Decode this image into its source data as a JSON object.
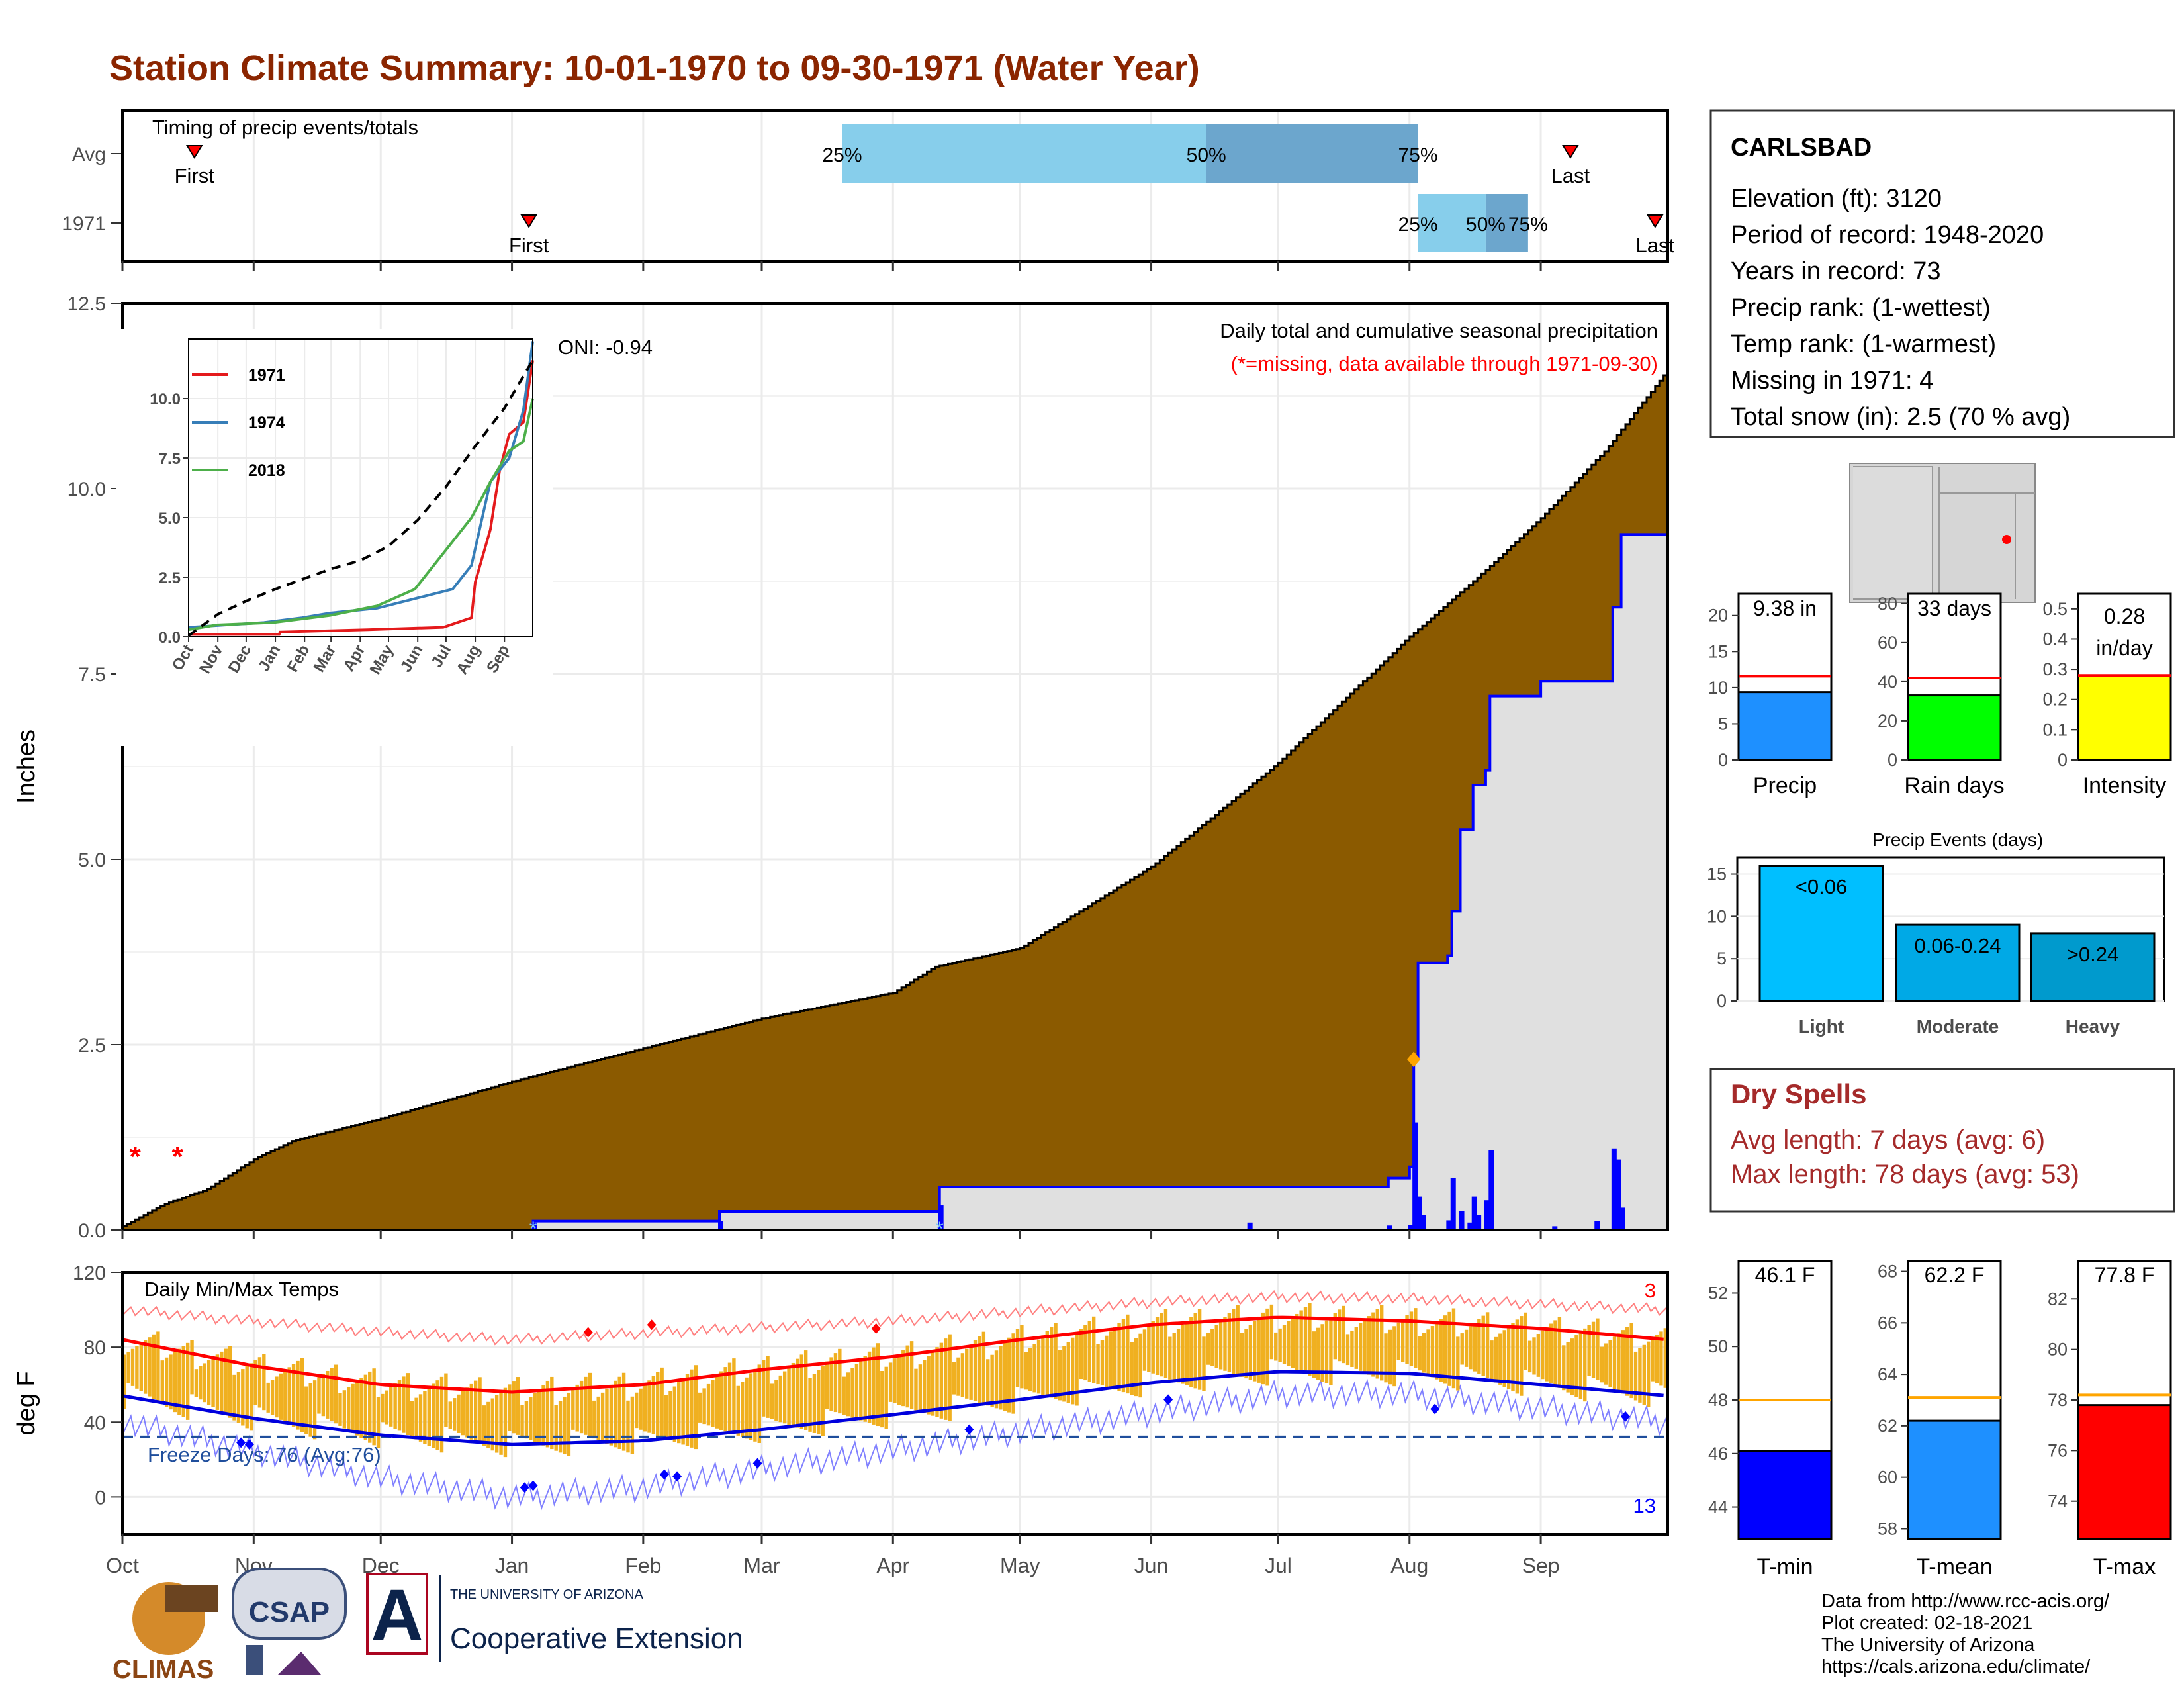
{
  "page": {
    "title": "Station Climate Summary: 10-01-1970 to 09-30-1971 (Water Year)",
    "credits": [
      "Data from http://www.rcc-acis.org/",
      "Plot created: 02-18-2021",
      "The University of Arizona",
      "https://cals.arizona.edu/climate/"
    ],
    "logos": {
      "climas": "CLIMAS",
      "csap": "CSAP",
      "ua_small": "THE UNIVERSITY OF ARIZONA",
      "ua_big": "Cooperative Extension"
    },
    "colors": {
      "title": "#8B2500",
      "precip_fill": "#8B5A00",
      "avg_fill": "#E0E0E0",
      "daily_bar": "#0000FF",
      "temp_bar": "#F0B020",
      "tmax_line": "#FF0000",
      "tmin_line": "#0000DD"
    }
  },
  "chart_data": [
    {
      "type": "bar",
      "title": "Timing of precip events/totals",
      "categories": [
        "Avg",
        "1971"
      ],
      "rows": [
        {
          "name": "Avg",
          "first_day": 17,
          "last_day": 342,
          "p25": 170,
          "p50": 256,
          "p75": 306
        },
        {
          "name": "1971",
          "first_day": 96,
          "last_day": 362,
          "p25": 306,
          "p50": 322,
          "p75": 332
        }
      ],
      "percent_labels": [
        "25%",
        "50%",
        "75%"
      ],
      "first_label": "First",
      "last_label": "Last",
      "last_label_1971": "Last",
      "colors": {
        "q1": "#87CEEB",
        "q2": "#6CA6CD",
        "marker": "#FF0000"
      }
    },
    {
      "type": "area",
      "title": "Daily total and cumulative seasonal precipitation",
      "subtitle": "(*=missing, data available through 1971-09-30)",
      "annotation": "ONI: -0.94",
      "ylabel": "Inches",
      "ylim": [
        0,
        12.5
      ],
      "yticks": [
        0.0,
        2.5,
        5.0,
        7.5,
        10.0,
        12.5
      ],
      "ytick_labels": [
        "0.0",
        "2.5",
        "5.0",
        "7.5",
        "10.0",
        "12.5"
      ],
      "x_labels": [
        "Oct",
        "Nov",
        "Dec",
        "Jan",
        "Feb",
        "Mar",
        "Apr",
        "May",
        "Jun",
        "Jul",
        "Aug",
        "Sep"
      ],
      "month_start_days": [
        0,
        31,
        61,
        92,
        123,
        151,
        182,
        212,
        243,
        273,
        304,
        335
      ],
      "avg_cumulative": [
        [
          0,
          0.05
        ],
        [
          5,
          0.2
        ],
        [
          10,
          0.35
        ],
        [
          20,
          0.55
        ],
        [
          31,
          0.95
        ],
        [
          40,
          1.2
        ],
        [
          61,
          1.5
        ],
        [
          92,
          2.0
        ],
        [
          123,
          2.45
        ],
        [
          151,
          2.85
        ],
        [
          182,
          3.2
        ],
        [
          192,
          3.55
        ],
        [
          212,
          3.8
        ],
        [
          243,
          4.9
        ],
        [
          273,
          6.3
        ],
        [
          304,
          8.0
        ],
        [
          320,
          8.8
        ],
        [
          335,
          9.6
        ],
        [
          350,
          10.5
        ],
        [
          365,
          11.6
        ]
      ],
      "cumulative_1971": [
        [
          0,
          0.0
        ],
        [
          96,
          0.0
        ],
        [
          97,
          0.12
        ],
        [
          140,
          0.12
        ],
        [
          141,
          0.25
        ],
        [
          192,
          0.25
        ],
        [
          193,
          0.58
        ],
        [
          298,
          0.58
        ],
        [
          299,
          0.7
        ],
        [
          304,
          0.85
        ],
        [
          305,
          2.3
        ],
        [
          306,
          3.6
        ],
        [
          313,
          3.7
        ],
        [
          314,
          4.3
        ],
        [
          316,
          5.4
        ],
        [
          319,
          6.0
        ],
        [
          322,
          6.2
        ],
        [
          323,
          7.2
        ],
        [
          335,
          7.4
        ],
        [
          350,
          7.4
        ],
        [
          352,
          8.4
        ],
        [
          354,
          9.38
        ],
        [
          365,
          9.38
        ]
      ],
      "daily_1971": [
        [
          97,
          0.1
        ],
        [
          141,
          0.12
        ],
        [
          193,
          0.33
        ],
        [
          266,
          0.1
        ],
        [
          299,
          0.06
        ],
        [
          304,
          0.07
        ],
        [
          305,
          1.45
        ],
        [
          306,
          0.45
        ],
        [
          307,
          0.2
        ],
        [
          313,
          0.13
        ],
        [
          314,
          0.7
        ],
        [
          316,
          0.25
        ],
        [
          318,
          0.1
        ],
        [
          319,
          0.45
        ],
        [
          320,
          0.2
        ],
        [
          322,
          0.4
        ],
        [
          323,
          1.08
        ],
        [
          338,
          0.05
        ],
        [
          348,
          0.12
        ],
        [
          352,
          1.1
        ],
        [
          353,
          0.95
        ],
        [
          354,
          0.3
        ]
      ],
      "missing_days": [
        3,
        13
      ],
      "missing_marker": "*",
      "inset": {
        "type": "line",
        "ylim": [
          0,
          12.5
        ],
        "yticks": [
          0.0,
          2.5,
          5.0,
          7.5,
          10.0
        ],
        "ytick_labels": [
          "0.0",
          "2.5",
          "5.0",
          "7.5",
          "10.0"
        ],
        "x_labels": [
          "Oct",
          "Nov",
          "Dec",
          "Jan",
          "Feb",
          "Mar",
          "Apr",
          "May",
          "Jun",
          "Jul",
          "Aug",
          "Sep"
        ],
        "legend": [
          "1971",
          "1974",
          "2018"
        ],
        "series": [
          {
            "name": "1971",
            "color": "#E41A1C",
            "points": [
              [
                0,
                0.1
              ],
              [
                96,
                0.1
              ],
              [
                97,
                0.2
              ],
              [
                190,
                0.3
              ],
              [
                270,
                0.4
              ],
              [
                300,
                0.8
              ],
              [
                304,
                2.3
              ],
              [
                320,
                4.5
              ],
              [
                330,
                7.0
              ],
              [
                340,
                8.5
              ],
              [
                355,
                9.0
              ],
              [
                365,
                11.6
              ]
            ]
          },
          {
            "name": "1974",
            "color": "#377EB8",
            "points": [
              [
                0,
                0.4
              ],
              [
                40,
                0.5
              ],
              [
                80,
                0.6
              ],
              [
                120,
                0.8
              ],
              [
                150,
                1.0
              ],
              [
                200,
                1.2
              ],
              [
                250,
                1.7
              ],
              [
                280,
                2.0
              ],
              [
                300,
                3.0
              ],
              [
                320,
                6.5
              ],
              [
                340,
                7.5
              ],
              [
                355,
                9.5
              ],
              [
                365,
                12.4
              ]
            ]
          },
          {
            "name": "2018",
            "color": "#4DAF4A",
            "points": [
              [
                0,
                0.3
              ],
              [
                30,
                0.5
              ],
              [
                90,
                0.6
              ],
              [
                150,
                0.9
              ],
              [
                200,
                1.3
              ],
              [
                240,
                2.0
              ],
              [
                270,
                3.5
              ],
              [
                300,
                5.0
              ],
              [
                320,
                6.5
              ],
              [
                340,
                7.8
              ],
              [
                355,
                8.2
              ],
              [
                365,
                10.0
              ]
            ]
          },
          {
            "name": "avg",
            "color": "#000000",
            "dashed": true,
            "points": [
              [
                0,
                0.05
              ],
              [
                31,
                0.95
              ],
              [
                61,
                1.5
              ],
              [
                92,
                2.0
              ],
              [
                123,
                2.45
              ],
              [
                151,
                2.85
              ],
              [
                182,
                3.2
              ],
              [
                212,
                3.8
              ],
              [
                243,
                4.9
              ],
              [
                273,
                6.3
              ],
              [
                304,
                8.0
              ],
              [
                335,
                9.6
              ],
              [
                365,
                11.6
              ]
            ]
          }
        ]
      }
    },
    {
      "type": "bar",
      "title": "Daily Min/Max Temps",
      "ylabel": "deg F",
      "ylim": [
        -20,
        120
      ],
      "yticks": [
        0,
        40,
        80,
        120
      ],
      "ytick_labels": [
        "0",
        "40",
        "80",
        "120"
      ],
      "x_labels": [
        "Oct",
        "Nov",
        "Dec",
        "Jan",
        "Feb",
        "Mar",
        "Apr",
        "May",
        "Jun",
        "Jul",
        "Aug",
        "Sep"
      ],
      "freeze_line": 32,
      "freeze_label": "Freeze Days: 76 (Avg:76)",
      "record_high_count": "3",
      "record_low_count": "13",
      "normal_tmax": [
        [
          0,
          84
        ],
        [
          31,
          70
        ],
        [
          61,
          60
        ],
        [
          92,
          56
        ],
        [
          123,
          60
        ],
        [
          151,
          68
        ],
        [
          182,
          75
        ],
        [
          212,
          84
        ],
        [
          243,
          92
        ],
        [
          273,
          96
        ],
        [
          304,
          94
        ],
        [
          335,
          90
        ],
        [
          365,
          84
        ]
      ],
      "normal_tmin": [
        [
          0,
          54
        ],
        [
          31,
          42
        ],
        [
          61,
          33
        ],
        [
          92,
          28
        ],
        [
          123,
          30
        ],
        [
          151,
          36
        ],
        [
          182,
          44
        ],
        [
          212,
          52
        ],
        [
          243,
          61
        ],
        [
          273,
          67
        ],
        [
          304,
          66
        ],
        [
          335,
          60
        ],
        [
          365,
          54
        ]
      ],
      "record_max": [
        [
          0,
          100
        ],
        [
          61,
          88
        ],
        [
          92,
          84
        ],
        [
          182,
          94
        ],
        [
          243,
          104
        ],
        [
          273,
          107
        ],
        [
          304,
          106
        ],
        [
          365,
          100
        ]
      ],
      "record_min": [
        [
          0,
          40
        ],
        [
          61,
          10
        ],
        [
          92,
          0
        ],
        [
          123,
          5
        ],
        [
          151,
          15
        ],
        [
          182,
          25
        ],
        [
          212,
          35
        ],
        [
          243,
          45
        ],
        [
          273,
          55
        ],
        [
          304,
          55
        ],
        [
          365,
          40
        ]
      ],
      "record_high_days": [
        [
          110,
          88
        ],
        [
          125,
          92
        ],
        [
          178,
          90
        ]
      ],
      "record_low_days": [
        [
          28,
          29
        ],
        [
          30,
          28
        ],
        [
          95,
          5
        ],
        [
          97,
          6
        ],
        [
          128,
          12
        ],
        [
          131,
          11
        ],
        [
          150,
          18
        ],
        [
          200,
          36
        ],
        [
          247,
          52
        ],
        [
          310,
          47
        ],
        [
          355,
          43
        ]
      ],
      "legend_note": "",
      "ticks_note": ""
    },
    {
      "type": "bar",
      "categories": [
        "Precip",
        "Rain days",
        "Intensity"
      ],
      "values": [
        9.38,
        33,
        0.28
      ],
      "averages": [
        11.6,
        42,
        0.28
      ],
      "value_labels": [
        "9.38 in",
        "33 days",
        "0.28\nin/day"
      ],
      "ylims": [
        [
          0,
          23
        ],
        [
          0,
          85
        ],
        [
          0,
          0.55
        ]
      ],
      "yticks": [
        [
          0,
          5,
          10,
          15,
          20
        ],
        [
          0,
          20,
          40,
          60,
          80
        ],
        [
          0.0,
          0.1,
          0.2,
          0.3,
          0.4,
          0.5
        ]
      ],
      "colors": [
        "#1E90FF",
        "#00FF00",
        "#FFFF00"
      ]
    },
    {
      "type": "bar",
      "title": "Precip Events (days)",
      "categories": [
        "Light",
        "Moderate",
        "Heavy"
      ],
      "values": [
        16,
        9,
        8
      ],
      "value_labels": [
        "<0.06",
        "0.06-0.24",
        ">0.24"
      ],
      "ylim": [
        0,
        17
      ],
      "yticks": [
        0,
        5,
        10,
        15
      ],
      "colors": [
        "#00BFFF",
        "#00A9E6",
        "#009ACD"
      ]
    },
    {
      "type": "bar",
      "categories": [
        "T-min",
        "T-mean",
        "T-max"
      ],
      "values": [
        46.1,
        62.2,
        77.8
      ],
      "averages": [
        48.0,
        63.1,
        78.2
      ],
      "value_labels": [
        "46.1 F",
        "62.2 F",
        "77.8 F"
      ],
      "ylims": [
        [
          42.8,
          53.2
        ],
        [
          57.6,
          68.4
        ],
        [
          72.5,
          83.5
        ]
      ],
      "yticks": [
        [
          44,
          46,
          48,
          50,
          52
        ],
        [
          58,
          60,
          62,
          64,
          66,
          68
        ],
        [
          74,
          76,
          78,
          80,
          82
        ]
      ],
      "colors": [
        "#0000FF",
        "#1E90FF",
        "#FF0000"
      ]
    }
  ],
  "station": {
    "name": "CARLSBAD",
    "lines": [
      "Elevation (ft): 3120",
      "Period of record: 1948-2020",
      "Years in record: 73",
      "Precip rank:  (1-wettest)",
      "Temp rank:  (1-warmest)",
      "Missing in 1971: 4",
      "Total snow (in): 2.5 (70 % avg)"
    ]
  },
  "dry_spells": {
    "title": "Dry Spells",
    "avg_length": "Avg length: 7 days (avg: 6)",
    "max_length": "Max length: 78 days (avg: 53)"
  }
}
